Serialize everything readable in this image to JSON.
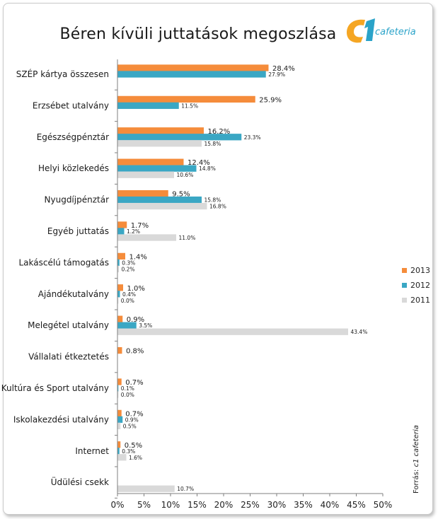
{
  "title": "Béren kívüli juttatások megoszlása",
  "logo": {
    "mark": "c1",
    "text": "cafeteria"
  },
  "source": {
    "prefix": "Forrás: ",
    "name": "c1 cafeteria"
  },
  "colors": {
    "2013": "#f58c3b",
    "2012": "#3aa7c4",
    "2011": "#d9d9d9",
    "logo_orange": "#f5a623",
    "logo_blue": "#2aa3c9"
  },
  "legend": [
    {
      "label": "2013",
      "color": "#f58c3b"
    },
    {
      "label": "2012",
      "color": "#3aa7c4"
    },
    {
      "label": "2011",
      "color": "#d9d9d9"
    }
  ],
  "chart_data": {
    "type": "bar",
    "orientation": "horizontal",
    "xlim": [
      0,
      50
    ],
    "x_ticks": [
      "0%",
      "5%",
      "10%",
      "15%",
      "20%",
      "25%",
      "30%",
      "35%",
      "40%",
      "45%",
      "50%"
    ],
    "categories": [
      "SZÉP kártya összesen",
      "Erzsébet utalvány",
      "Egészségpénztár",
      "Helyi közlekedés",
      "Nyugdíjpénztár",
      "Egyéb juttatás",
      "Lakáscélú támogatás",
      "Ajándékutalvány",
      "Melegétel utalvány",
      "Vállalati étkeztetés",
      "Kultúra és Sport utalvány",
      "Iskolakezdési utalvány",
      "Internet",
      "Üdülési csekk"
    ],
    "series": [
      {
        "name": "2013",
        "color": "#f58c3b",
        "values": [
          28.4,
          25.9,
          16.2,
          12.4,
          9.5,
          1.7,
          1.4,
          1.0,
          0.9,
          0.8,
          0.7,
          0.7,
          0.5,
          null
        ],
        "labels": [
          "28.4%",
          "25.9%",
          "16.2%",
          "12.4%",
          "9.5%",
          "1.7%",
          "1.4%",
          "1.0%",
          "0.9%",
          "0.8%",
          "0.7%",
          "0.7%",
          "0.5%",
          null
        ]
      },
      {
        "name": "2012",
        "color": "#3aa7c4",
        "values": [
          27.9,
          11.5,
          23.3,
          14.8,
          15.8,
          1.2,
          0.3,
          0.4,
          3.5,
          null,
          0.1,
          0.9,
          0.3,
          null
        ],
        "labels": [
          "27.9%",
          "11.5%",
          "23.3%",
          "14.8%",
          "15.8%",
          "1.2%",
          "0.3%",
          "0.4%",
          "3.5%",
          null,
          "0.1%",
          "0.9%",
          "0.3%",
          null
        ]
      },
      {
        "name": "2011",
        "color": "#d9d9d9",
        "values": [
          null,
          null,
          15.8,
          10.6,
          16.8,
          11.0,
          0.2,
          0.0,
          43.4,
          null,
          0.0,
          0.5,
          1.6,
          10.7
        ],
        "labels": [
          null,
          null,
          "15.8%",
          "10.6%",
          "16.8%",
          "11.0%",
          "0.2%",
          "0.0%",
          "43.4%",
          null,
          "0.0%",
          "0.5%",
          "1.6%",
          "10.7%"
        ]
      }
    ],
    "grid": false,
    "legend_position": "right"
  }
}
